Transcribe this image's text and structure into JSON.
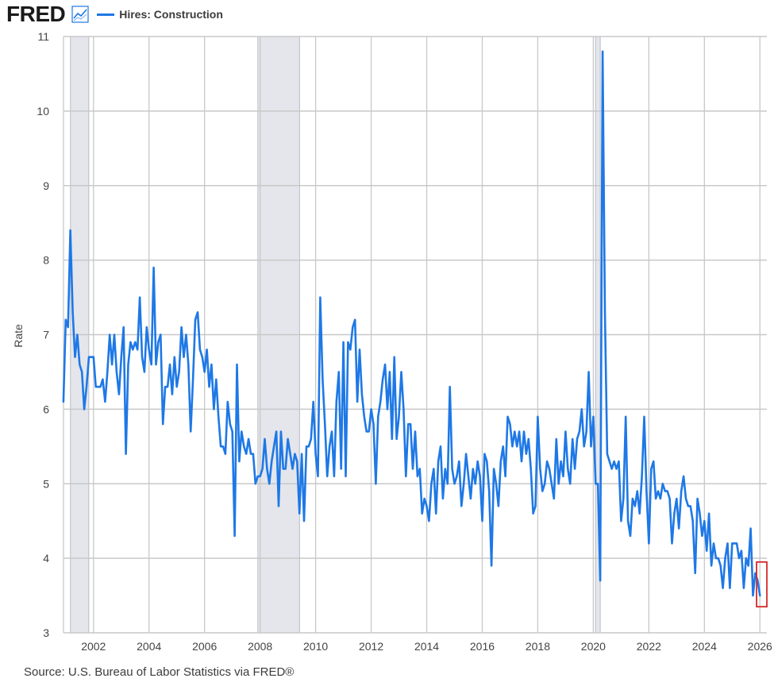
{
  "header": {
    "logo_text": "FRED",
    "logo_icon": "line-chart-icon",
    "legend_label": "Hires: Construction"
  },
  "source": "Source: U.S. Bureau of Labor Statistics via FRED®",
  "colors": {
    "series": "#1e78e6",
    "recession": "#e4e6ec",
    "grid": "#c8c8c8",
    "highlight_box": "#d62828"
  },
  "chart_data": {
    "type": "line",
    "title": "",
    "xlabel": "",
    "ylabel": "Rate",
    "xlim": [
      2000.92,
      2026.25
    ],
    "ylim": [
      3,
      11
    ],
    "y_ticks": [
      "3",
      "4",
      "5",
      "6",
      "7",
      "8",
      "9",
      "10",
      "11"
    ],
    "x_ticks": [
      "2002",
      "2004",
      "2006",
      "2008",
      "2010",
      "2012",
      "2014",
      "2016",
      "2018",
      "2020",
      "2022",
      "2024",
      "2026"
    ],
    "grid": "horizontal and vertical",
    "legend_placement": "top-left",
    "recessions": [
      {
        "start": 2001.17,
        "end": 2001.83
      },
      {
        "start": 2007.92,
        "end": 2009.42
      },
      {
        "start": 2020.08,
        "end": 2020.25
      }
    ],
    "highlight": {
      "x_start": 2025.88,
      "x_end": 2026.25,
      "y_start": 3.35,
      "y_end": 3.95
    },
    "series": [
      {
        "name": "Hires: Construction",
        "x_start": 2000.917,
        "x_step": 0.0833333,
        "values": [
          6.1,
          7.2,
          7.1,
          8.4,
          7.3,
          6.7,
          7.0,
          6.6,
          6.5,
          6.0,
          6.3,
          6.7,
          6.7,
          6.7,
          6.3,
          6.3,
          6.3,
          6.4,
          6.1,
          6.5,
          7.0,
          6.6,
          7.0,
          6.5,
          6.2,
          6.7,
          7.1,
          5.4,
          6.6,
          6.9,
          6.8,
          6.9,
          6.8,
          7.5,
          6.7,
          6.5,
          7.1,
          6.8,
          6.6,
          7.9,
          6.6,
          6.9,
          7.0,
          5.8,
          6.3,
          6.3,
          6.6,
          6.2,
          6.7,
          6.3,
          6.5,
          7.1,
          6.7,
          7.0,
          6.6,
          5.7,
          6.4,
          7.2,
          7.3,
          6.8,
          6.7,
          6.5,
          6.8,
          6.3,
          6.6,
          6.0,
          6.4,
          5.9,
          5.5,
          5.5,
          5.4,
          6.1,
          5.8,
          5.7,
          4.3,
          6.6,
          5.3,
          5.7,
          5.5,
          5.4,
          5.6,
          5.4,
          5.4,
          5.0,
          5.1,
          5.1,
          5.2,
          5.6,
          5.2,
          5.0,
          5.3,
          5.5,
          5.7,
          4.7,
          5.7,
          5.2,
          5.2,
          5.6,
          5.4,
          5.2,
          5.4,
          5.3,
          4.6,
          5.4,
          4.5,
          5.5,
          5.5,
          5.6,
          6.1,
          5.4,
          5.1,
          7.5,
          6.4,
          5.8,
          5.1,
          5.5,
          5.7,
          5.1,
          6.1,
          6.5,
          5.2,
          6.9,
          5.1,
          6.9,
          6.8,
          7.1,
          7.2,
          6.1,
          6.8,
          6.2,
          5.9,
          5.7,
          5.7,
          6.0,
          5.8,
          5.0,
          5.9,
          6.1,
          6.4,
          6.6,
          6.0,
          6.5,
          5.6,
          6.7,
          5.6,
          5.9,
          6.5,
          6.0,
          5.1,
          5.8,
          5.8,
          5.2,
          5.7,
          5.1,
          5.2,
          4.6,
          4.8,
          4.7,
          4.5,
          5.0,
          5.2,
          4.6,
          5.3,
          5.5,
          4.8,
          5.2,
          5.0,
          6.3,
          5.2,
          5.0,
          5.1,
          5.3,
          4.7,
          5.0,
          5.4,
          5.1,
          4.8,
          5.2,
          5.0,
          5.3,
          5.1,
          4.5,
          5.4,
          5.3,
          4.9,
          3.9,
          5.2,
          5.0,
          4.7,
          5.3,
          5.5,
          5.1,
          5.9,
          5.8,
          5.5,
          5.7,
          5.5,
          5.7,
          5.3,
          5.7,
          5.4,
          5.6,
          5.2,
          4.6,
          4.7,
          5.9,
          5.2,
          4.9,
          5.0,
          5.3,
          5.2,
          5.0,
          4.8,
          5.6,
          5.0,
          5.3,
          5.1,
          5.7,
          5.2,
          5.0,
          5.6,
          5.2,
          5.6,
          5.7,
          6.0,
          5.5,
          5.7,
          6.5,
          5.5,
          5.9,
          5.0,
          5.0,
          3.7,
          10.8,
          7.3,
          5.4,
          5.3,
          5.2,
          5.3,
          5.2,
          5.3,
          4.5,
          4.8,
          5.9,
          4.5,
          4.3,
          4.8,
          4.7,
          4.9,
          4.6,
          5.1,
          5.9,
          4.9,
          4.2,
          5.2,
          5.3,
          4.8,
          4.9,
          4.8,
          5.0,
          4.9,
          4.9,
          4.8,
          4.2,
          4.6,
          4.8,
          4.4,
          4.9,
          5.1,
          4.8,
          4.7,
          4.7,
          4.5,
          3.8,
          4.8,
          4.6,
          4.3,
          4.5,
          4.1,
          4.6,
          3.9,
          4.2,
          4.0,
          4.0,
          3.9,
          3.6,
          4.0,
          4.2,
          3.6,
          4.2,
          4.2,
          4.2,
          4.0,
          4.1,
          3.6,
          4.0,
          3.9,
          4.4,
          3.5,
          3.8,
          3.7,
          3.5
        ]
      }
    ]
  }
}
